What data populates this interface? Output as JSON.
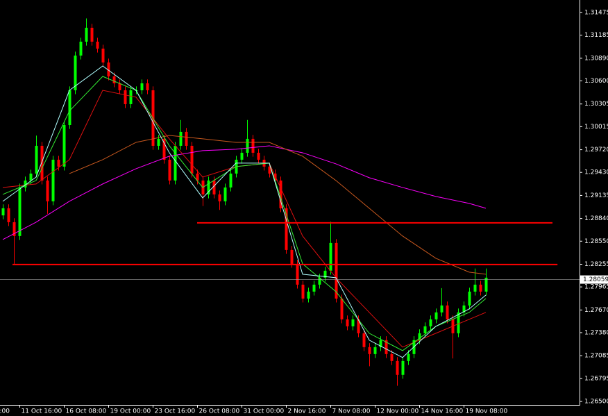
{
  "chart_data": {
    "type": "candlestick",
    "xlim": [
      -0.5,
      103.875
    ],
    "ylim": [
      1.26456,
      1.31635
    ],
    "yticks": [
      1.31475,
      1.31185,
      {
        "value": 1.3089,
        "label": "1.30890"
      },
      {
        "value": 1.306,
        "label": "1.30600"
      },
      1.30305,
      1.30015,
      {
        "value": 1.2972,
        "label": "1.29720"
      },
      {
        "value": 1.2943,
        "label": "1.29430"
      },
      1.29135,
      {
        "value": 1.2884,
        "label": "1.28840"
      },
      {
        "value": 1.2855,
        "label": "1.28550"
      },
      1.28255,
      1.27965,
      {
        "value": 1.2767,
        "label": "1.27670"
      },
      {
        "value": 1.2738,
        "label": "1.27380"
      },
      1.27085,
      1.26795,
      {
        "value": 1.265,
        "label": "1.26500"
      }
    ],
    "x_label_cut": "0:00",
    "categories": [
      null,
      null,
      null,
      "11 Oct 16:00",
      null,
      null,
      null,
      null,
      null,
      null,
      null,
      "16 Oct 08:00",
      null,
      null,
      null,
      null,
      null,
      null,
      null,
      "19 Oct 00:00",
      null,
      null,
      null,
      null,
      null,
      null,
      null,
      "23 Oct 16:00",
      null,
      null,
      null,
      null,
      null,
      null,
      null,
      "26 Oct 08:00",
      null,
      null,
      null,
      null,
      null,
      null,
      null,
      "31 Oct 00:00",
      null,
      null,
      null,
      null,
      null,
      null,
      null,
      "2 Nov 16:00",
      null,
      null,
      null,
      null,
      null,
      null,
      null,
      "7 Nov 08:00",
      null,
      null,
      null,
      null,
      null,
      null,
      null,
      "12 Nov 00:00",
      null,
      null,
      null,
      null,
      null,
      null,
      null,
      "14 Nov 16:00",
      null,
      null,
      null,
      null,
      null,
      null,
      null,
      "19 Nov 08:00",
      null,
      null,
      null,
      null
    ],
    "up_color": "#00ff00",
    "down_color": "#ff0000",
    "candles": {
      "open": [
        1.2888,
        1.28971,
        1.28793,
        1.28616,
        1.29237,
        1.29326,
        1.29415,
        1.2977,
        1.29326,
        1.2906,
        1.29592,
        1.29504,
        1.30036,
        1.3048,
        1.30924,
        1.31102,
        1.3128,
        1.31102,
        1.31013,
        1.30836,
        1.30658,
        1.30569,
        1.3048,
        1.30303,
        1.3048,
        1.3048,
        1.30569,
        1.3048,
        1.2977,
        1.29859,
        1.29592,
        1.29326,
        1.2977,
        1.29948,
        1.2977,
        1.29415,
        1.29326,
        1.29148,
        1.29326,
        1.29148,
        1.2906,
        1.29237,
        1.29415,
        1.29592,
        1.29681,
        1.29859,
        1.29681,
        1.29592,
        1.29504,
        1.29415,
        1.29326,
        1.28971,
        1.28438,
        1.2826,
        1.27994,
        1.27816,
        1.27905,
        1.27994,
        1.28083,
        1.28172,
        1.28527,
        1.27816,
        1.2755,
        1.27461,
        1.2755,
        1.27372,
        1.27195,
        1.27106,
        1.27195,
        1.27284,
        1.27106,
        1.27017,
        1.2684,
        1.27017,
        1.27106,
        1.27284,
        1.27372,
        1.27461,
        1.2755,
        1.27639,
        1.27728,
        1.2755,
        1.27372,
        1.27639,
        1.27728,
        1.27905,
        1.27994,
        1.27905
      ],
      "high": [
        1.29021,
        1.29021,
        1.28843,
        1.29287,
        1.29376,
        1.29465,
        1.299,
        1.2982,
        1.29376,
        1.29642,
        1.29642,
        1.30086,
        1.3053,
        1.30974,
        1.31152,
        1.314,
        1.3133,
        1.31152,
        1.31063,
        1.30886,
        1.30708,
        1.30619,
        1.3053,
        1.3053,
        1.3053,
        1.30619,
        1.30619,
        1.3053,
        1.29909,
        1.29909,
        1.29642,
        1.2982,
        1.301,
        1.29998,
        1.2982,
        1.29465,
        1.29376,
        1.29376,
        1.29376,
        1.29198,
        1.29287,
        1.29465,
        1.29642,
        1.29731,
        1.301,
        1.29909,
        1.29731,
        1.29642,
        1.29554,
        1.29465,
        1.29376,
        1.29021,
        1.28488,
        1.2831,
        1.28044,
        1.27955,
        1.28044,
        1.28133,
        1.28222,
        1.288,
        1.28577,
        1.27866,
        1.276,
        1.276,
        1.276,
        1.27422,
        1.27245,
        1.27245,
        1.27334,
        1.27334,
        1.27156,
        1.27067,
        1.27067,
        1.27156,
        1.27334,
        1.27422,
        1.27511,
        1.276,
        1.27689,
        1.2795,
        1.27778,
        1.276,
        1.27689,
        1.27778,
        1.27955,
        1.282,
        1.28044,
        1.282
      ],
      "low": [
        1.2883,
        1.28743,
        1.2826,
        1.28566,
        1.29187,
        1.29276,
        1.29365,
        1.29276,
        1.289,
        1.2901,
        1.29454,
        1.29454,
        1.29986,
        1.3043,
        1.30874,
        1.31052,
        1.31052,
        1.30963,
        1.30786,
        1.30608,
        1.30519,
        1.3043,
        1.30253,
        1.30253,
        1.3043,
        1.3043,
        1.3043,
        1.2972,
        1.2972,
        1.29542,
        1.29276,
        1.29276,
        1.2972,
        1.2972,
        1.29365,
        1.29276,
        1.29,
        1.29098,
        1.29098,
        1.2895,
        1.2901,
        1.29187,
        1.29365,
        1.29542,
        1.29631,
        1.29631,
        1.29542,
        1.29454,
        1.29365,
        1.29276,
        1.28921,
        1.28388,
        1.2821,
        1.27944,
        1.27766,
        1.27766,
        1.27855,
        1.27944,
        1.28033,
        1.28122,
        1.27766,
        1.275,
        1.27411,
        1.27411,
        1.27322,
        1.27145,
        1.2695,
        1.27056,
        1.27145,
        1.27056,
        1.26967,
        1.267,
        1.2679,
        1.26967,
        1.27056,
        1.27234,
        1.27322,
        1.27411,
        1.275,
        1.27589,
        1.275,
        1.2705,
        1.27322,
        1.27589,
        1.27678,
        1.27855,
        1.27855,
        1.27855
      ],
      "close": [
        1.28971,
        1.28793,
        1.28616,
        1.29237,
        1.29326,
        1.29415,
        1.2977,
        1.29326,
        1.2906,
        1.29592,
        1.29504,
        1.30036,
        1.3048,
        1.30924,
        1.31102,
        1.3128,
        1.31102,
        1.31013,
        1.30836,
        1.30658,
        1.30569,
        1.3048,
        1.30303,
        1.3048,
        1.3048,
        1.30569,
        1.3048,
        1.2977,
        1.29859,
        1.29592,
        1.29326,
        1.2977,
        1.29948,
        1.2977,
        1.29415,
        1.29326,
        1.29148,
        1.29326,
        1.29148,
        1.2906,
        1.29237,
        1.29415,
        1.29592,
        1.29681,
        1.29859,
        1.29681,
        1.29592,
        1.29504,
        1.29415,
        1.29326,
        1.28971,
        1.28438,
        1.2826,
        1.27994,
        1.27816,
        1.27905,
        1.27994,
        1.28083,
        1.28172,
        1.28527,
        1.27816,
        1.2755,
        1.27461,
        1.2755,
        1.27372,
        1.27195,
        1.27106,
        1.27195,
        1.27284,
        1.27106,
        1.27017,
        1.2684,
        1.27017,
        1.27106,
        1.27284,
        1.27372,
        1.27461,
        1.2755,
        1.27639,
        1.27728,
        1.2755,
        1.27372,
        1.27639,
        1.27728,
        1.27905,
        1.27994,
        1.27905,
        1.28083
      ]
    },
    "line_x": [
      0,
      6,
      12,
      18,
      24,
      30,
      36,
      42,
      48,
      54,
      60,
      66,
      72,
      78,
      84,
      87
    ],
    "lines": [
      {
        "color": "#ff00ff",
        "values": [
          1.28571,
          1.28793,
          1.2906,
          1.29282,
          1.29477,
          1.29637,
          1.29708,
          1.29726,
          1.2977,
          1.29681,
          1.29539,
          1.29362,
          1.29237,
          1.29122,
          1.29033,
          1.28971
        ]
      },
      {
        "color": "#c8581e",
        "values": [
          null,
          null,
          1.29415,
          1.29592,
          1.29814,
          1.29903,
          1.29859,
          1.29814,
          1.29814,
          1.29637,
          1.29326,
          1.28971,
          1.28616,
          1.28331,
          1.28154,
          1.28127
        ]
      },
      {
        "color": "#e01010",
        "values": [
          1.29237,
          1.29282,
          1.29592,
          1.3048,
          1.30392,
          1.29859,
          1.2937,
          1.29504,
          1.29548,
          1.28616,
          1.28083,
          1.27639,
          1.27195,
          1.27372,
          1.2755,
          1.27639
        ]
      },
      {
        "color": "#33ee33",
        "values": [
          1.29148,
          1.29326,
          1.30214,
          1.30658,
          1.3048,
          1.2977,
          1.29237,
          1.29504,
          1.29548,
          1.2826,
          1.27905,
          1.27372,
          1.2715,
          1.27461,
          1.27639,
          1.27816
        ]
      },
      {
        "color": "#b0ffff",
        "values": [
          1.2906,
          1.2937,
          1.3048,
          1.30791,
          1.3048,
          1.29681,
          1.29104,
          1.29548,
          1.29548,
          1.28127,
          1.28083,
          1.27284,
          1.27062,
          1.27461,
          1.27683,
          1.27861
        ]
      }
    ],
    "hline_color": "#ff0000",
    "hlines": [
      {
        "value": 1.28784,
        "from": 35,
        "to": 99
      },
      {
        "value": 1.28252,
        "from": 1.75,
        "to": 99.9
      }
    ],
    "price": 1.28059,
    "price_color": "#a0a0a0"
  }
}
